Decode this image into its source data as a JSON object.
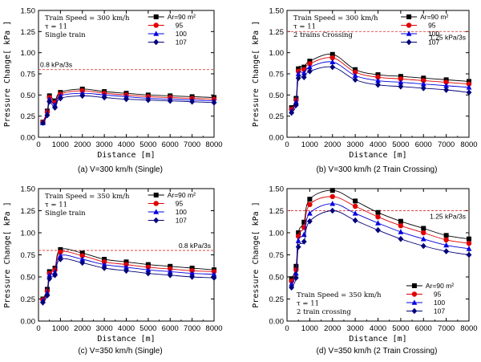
{
  "series_names": [
    "Ar=90 m²",
    "95",
    "100",
    "107"
  ],
  "colors": [
    "#000000",
    "#e00000",
    "#0000e0",
    "#00007a"
  ],
  "threshold_color": "#e04040",
  "chart_data": [
    {
      "type": "line",
      "caption": "(a) V=300 km/h (Single)",
      "xlabel": "Distance [m]",
      "ylabel": "Pressure Change[ kPa ]",
      "xlim": [
        0,
        8000
      ],
      "ylim": [
        0,
        1.5
      ],
      "xticks": [
        "0",
        "1000",
        "2000",
        "3000",
        "4000",
        "5000",
        "6000",
        "7000",
        "8000"
      ],
      "yticks": [
        "0.00",
        "0.25",
        "0.50",
        "0.75",
        "1.00",
        "1.25",
        "1.50"
      ],
      "info": [
        "Train Speed = 300 km/h",
        "τ = 11",
        "Single train"
      ],
      "info_position": "top-left",
      "threshold": {
        "value": 0.8,
        "label": "0.8 kPa/3s"
      },
      "x": [
        200,
        400,
        500,
        750,
        1000,
        2000,
        3000,
        4000,
        5000,
        6000,
        7000,
        8000
      ],
      "series": [
        {
          "name": "Ar=90 m²",
          "values": [
            0.18,
            0.31,
            0.49,
            0.43,
            0.53,
            0.57,
            0.54,
            0.52,
            0.5,
            0.49,
            0.48,
            0.47
          ]
        },
        {
          "name": "95",
          "values": [
            0.18,
            0.3,
            0.47,
            0.41,
            0.51,
            0.55,
            0.52,
            0.5,
            0.48,
            0.47,
            0.46,
            0.45
          ]
        },
        {
          "name": "100",
          "values": [
            0.17,
            0.28,
            0.45,
            0.38,
            0.49,
            0.52,
            0.5,
            0.48,
            0.46,
            0.45,
            0.44,
            0.43
          ]
        },
        {
          "name": "107",
          "values": [
            0.17,
            0.26,
            0.42,
            0.35,
            0.46,
            0.49,
            0.47,
            0.45,
            0.44,
            0.43,
            0.42,
            0.41
          ]
        }
      ]
    },
    {
      "type": "line",
      "caption": "(b) V=300 km/h (2 Train Crossing)",
      "xlabel": "Distance [m]",
      "ylabel": "Pressure Change[ kPa ]",
      "xlim": [
        0,
        8000
      ],
      "ylim": [
        0,
        1.5
      ],
      "xticks": [
        "0",
        "1000",
        "2000",
        "3000",
        "4000",
        "5000",
        "6000",
        "7000",
        "8000"
      ],
      "yticks": [
        "0.00",
        "0.25",
        "0.50",
        "0.75",
        "1.00",
        "1.25",
        "1.50"
      ],
      "info": [
        "Train Speed = 300 km/h",
        "τ = 11",
        "2 trains Crossing"
      ],
      "info_position": "top-left",
      "threshold": {
        "value": 1.25,
        "label": "1.25 kPa/3s"
      },
      "x": [
        200,
        400,
        500,
        750,
        1000,
        2000,
        3000,
        4000,
        5000,
        6000,
        7000,
        8000
      ],
      "series": [
        {
          "name": "Ar=90 m²",
          "values": [
            0.35,
            0.46,
            0.81,
            0.83,
            0.9,
            0.98,
            0.8,
            0.74,
            0.72,
            0.7,
            0.68,
            0.66
          ]
        },
        {
          "name": "95",
          "values": [
            0.33,
            0.44,
            0.78,
            0.8,
            0.87,
            0.94,
            0.77,
            0.71,
            0.69,
            0.67,
            0.65,
            0.63
          ]
        },
        {
          "name": "100",
          "values": [
            0.31,
            0.42,
            0.75,
            0.76,
            0.83,
            0.89,
            0.73,
            0.67,
            0.65,
            0.63,
            0.61,
            0.59
          ]
        },
        {
          "name": "107",
          "values": [
            0.29,
            0.38,
            0.7,
            0.71,
            0.78,
            0.83,
            0.68,
            0.62,
            0.6,
            0.58,
            0.56,
            0.53
          ]
        }
      ]
    },
    {
      "type": "line",
      "caption": "(c) V=350 km/h (Single)",
      "xlabel": "Distance [m]",
      "ylabel": "Pressure Change[ kPa ]",
      "xlim": [
        0,
        8000
      ],
      "ylim": [
        0,
        1.5
      ],
      "xticks": [
        "0",
        "1000",
        "2000",
        "3000",
        "4000",
        "5000",
        "6000",
        "7000",
        "8000"
      ],
      "yticks": [
        "0.00",
        "0.25",
        "0.50",
        "0.75",
        "1.00",
        "1.25",
        "1.50"
      ],
      "info": [
        "Train Speed = 350 km/h",
        "τ = 11",
        "Single train"
      ],
      "info_position": "top-left",
      "threshold": {
        "value": 0.8,
        "label": "0.8 kPa/3s"
      },
      "x": [
        200,
        400,
        500,
        750,
        1000,
        2000,
        3000,
        4000,
        5000,
        6000,
        7000,
        8000
      ],
      "series": [
        {
          "name": "Ar=90 m²",
          "values": [
            0.25,
            0.36,
            0.56,
            0.6,
            0.81,
            0.77,
            0.7,
            0.67,
            0.64,
            0.62,
            0.6,
            0.58
          ]
        },
        {
          "name": "95",
          "values": [
            0.24,
            0.34,
            0.54,
            0.58,
            0.78,
            0.74,
            0.67,
            0.64,
            0.61,
            0.59,
            0.57,
            0.56
          ]
        },
        {
          "name": "100",
          "values": [
            0.23,
            0.32,
            0.52,
            0.55,
            0.74,
            0.7,
            0.64,
            0.61,
            0.58,
            0.56,
            0.54,
            0.53
          ]
        },
        {
          "name": "107",
          "values": [
            0.21,
            0.29,
            0.48,
            0.52,
            0.7,
            0.66,
            0.6,
            0.57,
            0.54,
            0.52,
            0.5,
            0.49
          ]
        }
      ]
    },
    {
      "type": "line",
      "caption": "(d) V=350 km/h (2 Train Crossing)",
      "xlabel": "Distance [m]",
      "ylabel": "Pressure Change[ kPa ]",
      "xlim": [
        0,
        8000
      ],
      "ylim": [
        0,
        1.5
      ],
      "xticks": [
        "0",
        "1000",
        "2000",
        "3000",
        "4000",
        "5000",
        "6000",
        "7000",
        "8000"
      ],
      "yticks": [
        "0.00",
        "0.25",
        "0.50",
        "0.75",
        "1.00",
        "1.25",
        "1.50"
      ],
      "info": [
        "Train Speed = 350 km/h",
        "τ = 11",
        "2 train crossing"
      ],
      "info_position": "bottom-left",
      "threshold": {
        "value": 1.25,
        "label": "1.25 kPa/3s"
      },
      "x": [
        200,
        400,
        500,
        750,
        1000,
        2000,
        3000,
        4000,
        5000,
        6000,
        7000,
        8000
      ],
      "series": [
        {
          "name": "Ar=90 m²",
          "values": [
            0.48,
            0.62,
            1.0,
            1.12,
            1.38,
            1.48,
            1.36,
            1.23,
            1.13,
            1.05,
            0.97,
            0.93
          ]
        },
        {
          "name": "95",
          "values": [
            0.45,
            0.58,
            0.96,
            1.06,
            1.32,
            1.41,
            1.3,
            1.18,
            1.08,
            1.0,
            0.92,
            0.88
          ]
        },
        {
          "name": "100",
          "values": [
            0.42,
            0.54,
            0.91,
            0.98,
            1.22,
            1.33,
            1.22,
            1.11,
            1.01,
            0.93,
            0.86,
            0.82
          ]
        },
        {
          "name": "107",
          "values": [
            0.38,
            0.49,
            0.84,
            0.9,
            1.13,
            1.25,
            1.14,
            1.03,
            0.93,
            0.85,
            0.79,
            0.75
          ]
        }
      ]
    }
  ]
}
